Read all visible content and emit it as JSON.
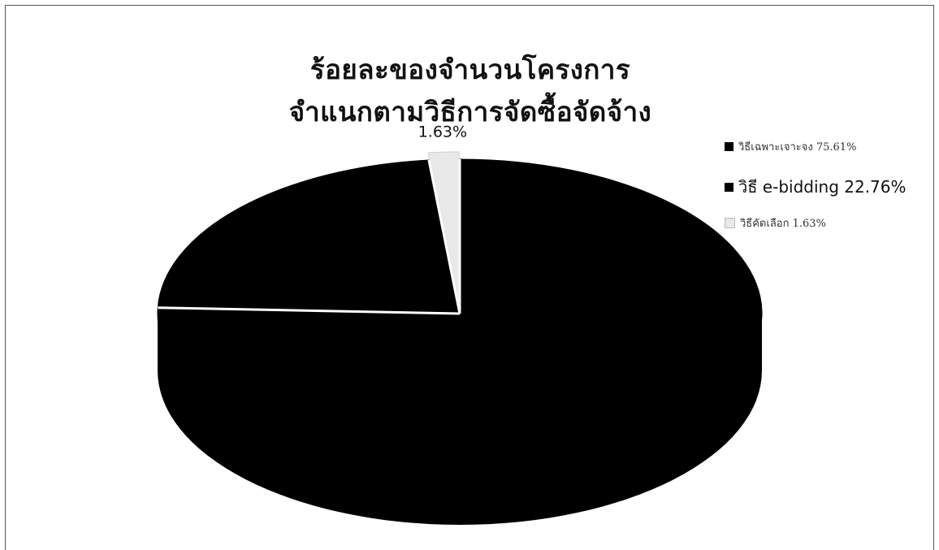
{
  "chart_data": {
    "type": "pie",
    "title": "ร้อยละของจำนวนโครงการ",
    "subtitle": "จำแนกตามวิธีการจัดซื้อจัดจ้าง",
    "categories": [
      "วิธีเฉพาะเจาะจง",
      "วิธี e-bidding",
      "วิธีคัดเลือก"
    ],
    "values": [
      75.61,
      22.76,
      1.63
    ],
    "legend_labels": [
      "วิธีเฉพาะเจาะจง 75.61%",
      "วิธี e-bidding 22.76%",
      "วิธีคัดเลือก 1.63%"
    ],
    "data_labels": [
      "",
      "",
      "1.63%"
    ],
    "legend_position": "right",
    "three_d": true,
    "colors": [
      "#000000",
      "#000000",
      "#e8e8e8"
    ]
  }
}
